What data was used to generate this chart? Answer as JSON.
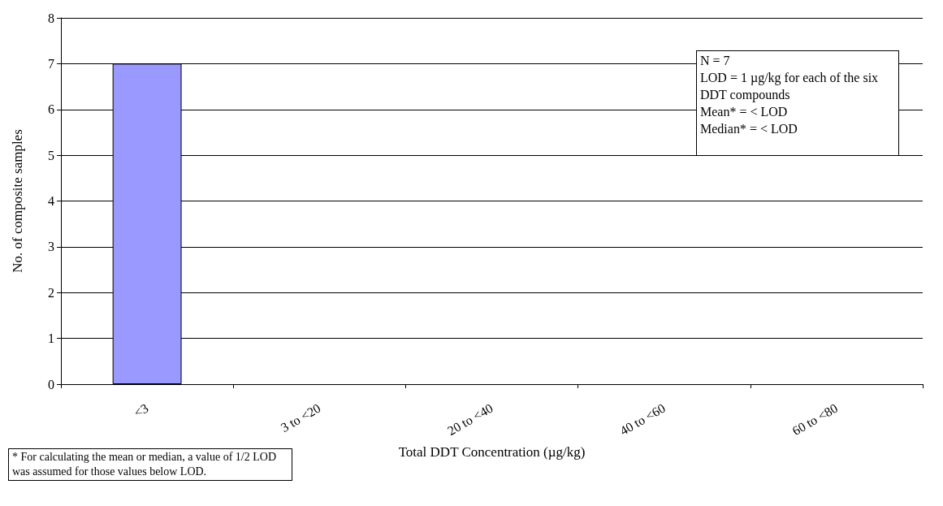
{
  "chart_data": {
    "type": "bar",
    "xlabel": "Total DDT Concentration (µg/kg)",
    "ylabel": "No. of composite samples",
    "categories": [
      "<3",
      "3 to <20",
      "20 to <40",
      "40 to <60",
      "60 to <80"
    ],
    "values": [
      7,
      0,
      0,
      0,
      0
    ],
    "color": "#9999ff",
    "ylim": [
      0,
      8
    ],
    "yticks": [
      0,
      1,
      2,
      3,
      4,
      5,
      6,
      7,
      8
    ],
    "grid": "y",
    "annotations": [
      "N = 7",
      "LOD  = 1 µg/kg for each of the six DDT compounds",
      "Mean*  =  < LOD",
      "Median*  = < LOD",
      "* For calculating the mean or median, a value of 1/2 LOD was assumed for those values below LOD."
    ]
  }
}
